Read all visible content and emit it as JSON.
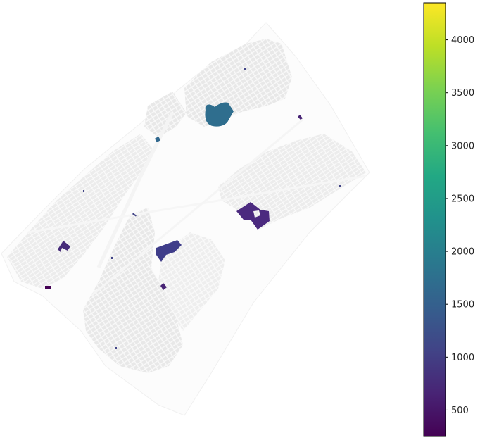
{
  "chart_data": {
    "type": "choropleth-map",
    "colormap": "viridis",
    "colorbar": {
      "orientation": "vertical",
      "position": "right",
      "min": 250,
      "max": 4350,
      "ticks": [
        {
          "value": 500,
          "label": "500"
        },
        {
          "value": 1000,
          "label": "1000"
        },
        {
          "value": 1500,
          "label": "1500"
        },
        {
          "value": 2000,
          "label": "2000"
        },
        {
          "value": 2500,
          "label": "2500"
        },
        {
          "value": 3000,
          "label": "3000"
        },
        {
          "value": 3500,
          "label": "3500"
        },
        {
          "value": 4000,
          "label": "4000"
        }
      ]
    },
    "highlighted_regions": [
      {
        "name": "north-circular-parcel",
        "value": 1600,
        "color": "#2f6e8e"
      },
      {
        "name": "central-large-parcel",
        "value": 800,
        "color": "#3f3d8a"
      },
      {
        "name": "east-large-parcel",
        "value": 650,
        "color": "#4b2a7f"
      },
      {
        "name": "west-parcel",
        "value": 700,
        "color": "#472c7a"
      },
      {
        "name": "southwest-small-parcel",
        "value": 300,
        "color": "#440154"
      },
      {
        "name": "central-small-parcel",
        "value": 500,
        "color": "#482475"
      },
      {
        "name": "northeast-small-parcel",
        "value": 500,
        "color": "#482475"
      },
      {
        "name": "north-small-parcel",
        "value": 1500,
        "color": "#31688e"
      }
    ],
    "background_fill": "#ececec",
    "background_stroke": "#f7f7f7"
  }
}
